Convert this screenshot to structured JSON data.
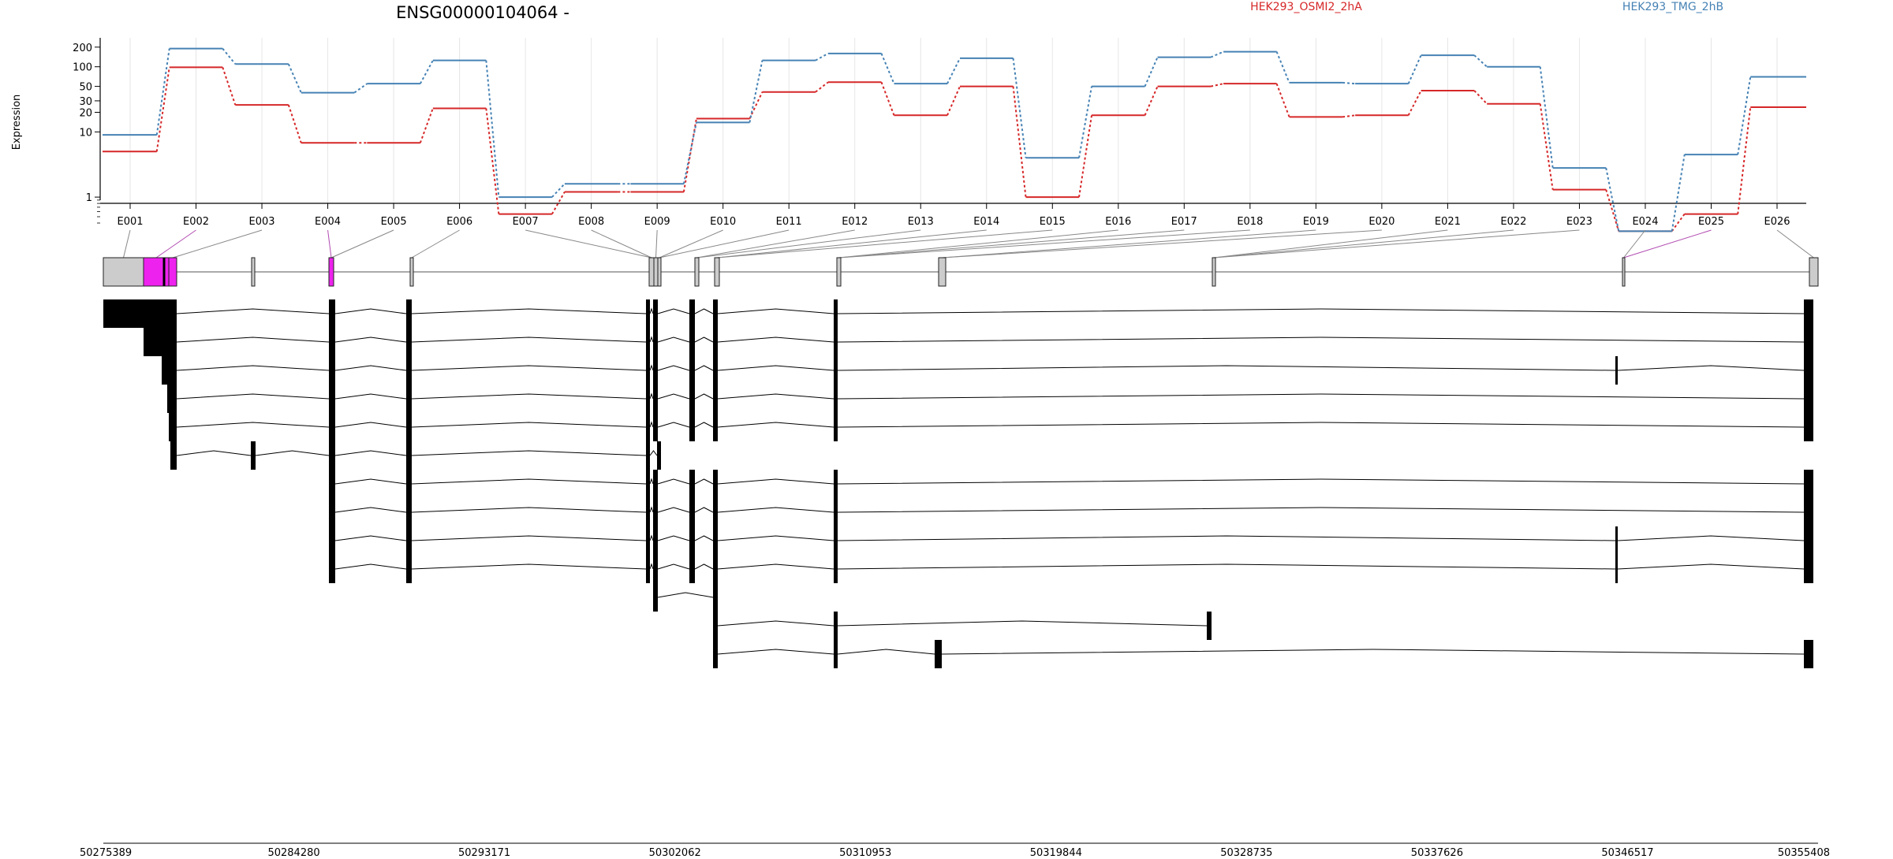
{
  "chart_data": {
    "type": "line",
    "title": "ENSG00000104064 -",
    "ylabel": "Expression",
    "y_scale": "log",
    "y_ticks": [
      "1",
      "10",
      "20",
      "30",
      "50",
      "100",
      "200"
    ],
    "grid": true,
    "legend_placement": "top-right",
    "categories": [
      "E001",
      "E002",
      "E003",
      "E004",
      "E005",
      "E006",
      "E007",
      "E008",
      "E009",
      "E010",
      "E011",
      "E012",
      "E013",
      "E014",
      "E015",
      "E016",
      "E017",
      "E018",
      "E019",
      "E020",
      "E021",
      "E022",
      "E023",
      "E024",
      "E025",
      "E026"
    ],
    "series": [
      {
        "name": "HEK293_OSMI2_2hA",
        "color": "#d62728",
        "values": [
          5.0,
          98,
          26,
          6.8,
          6.8,
          23,
          0.55,
          1.2,
          1.2,
          16,
          41,
          58,
          18,
          50,
          1.0,
          18,
          50,
          55,
          17,
          18,
          43,
          27,
          1.3,
          0.3,
          0.55,
          24
        ]
      },
      {
        "name": "HEK293_TMG_2hB",
        "color": "#4682b4",
        "values": [
          9.0,
          190,
          110,
          40,
          55,
          125,
          1.0,
          1.6,
          1.6,
          14,
          125,
          160,
          55,
          135,
          4.0,
          50,
          140,
          170,
          57,
          55,
          150,
          100,
          2.8,
          0.3,
          4.5,
          70
        ]
      }
    ],
    "exon_colors": {
      "normal": "#cccccc",
      "highlight": "#ee22ee"
    },
    "highlighted_exons": [
      "E002",
      "E004"
    ],
    "coordinate_ticks": [
      "50275389",
      "50284280",
      "50293171",
      "50302062",
      "50310953",
      "50319844",
      "50328735",
      "50337626",
      "50346517",
      "50355408"
    ]
  }
}
